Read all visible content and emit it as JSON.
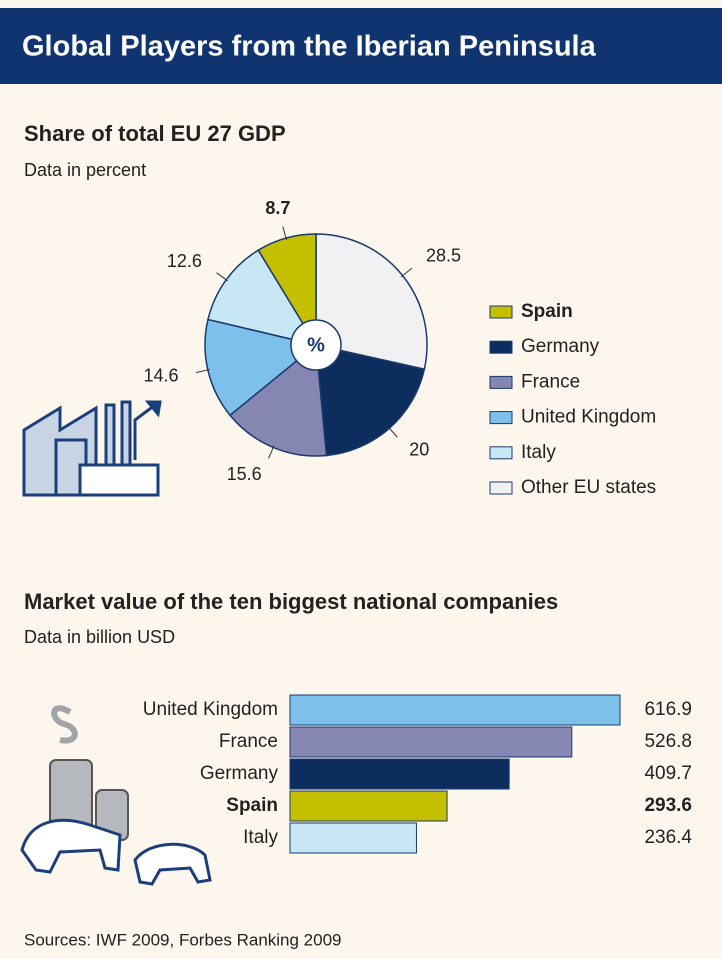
{
  "title": "Global Players from the Iberian Peninsula",
  "chart_data": [
    {
      "type": "pie",
      "title": "Share of total EU 27 GDP",
      "subtitle": "Data in percent",
      "center_label": "%",
      "categories": [
        "Spain",
        "Germany",
        "France",
        "United Kingdom",
        "Italy",
        "Other EU states"
      ],
      "values": [
        8.7,
        20,
        15.6,
        14.6,
        12.6,
        28.5
      ],
      "colors": [
        "#c4bf00",
        "#0e2d5f",
        "#8686b2",
        "#7dc1ea",
        "#c7e7f5",
        "#f1f1f3"
      ],
      "highlight": "Spain",
      "legend": "right"
    },
    {
      "type": "hbar",
      "title": "Market value of the ten biggest national companies",
      "subtitle": "Data in billion USD",
      "categories": [
        "United Kingdom",
        "France",
        "Germany",
        "Spain",
        "Italy"
      ],
      "values": [
        616.9,
        526.8,
        409.7,
        293.6,
        236.4
      ],
      "colors": [
        "#7dc1ea",
        "#8686b2",
        "#0e2d5f",
        "#c4bf00",
        "#c7e7f5"
      ],
      "highlight": "Spain"
    }
  ],
  "source": "Sources: IWF 2009, Forbes Ranking 2009"
}
